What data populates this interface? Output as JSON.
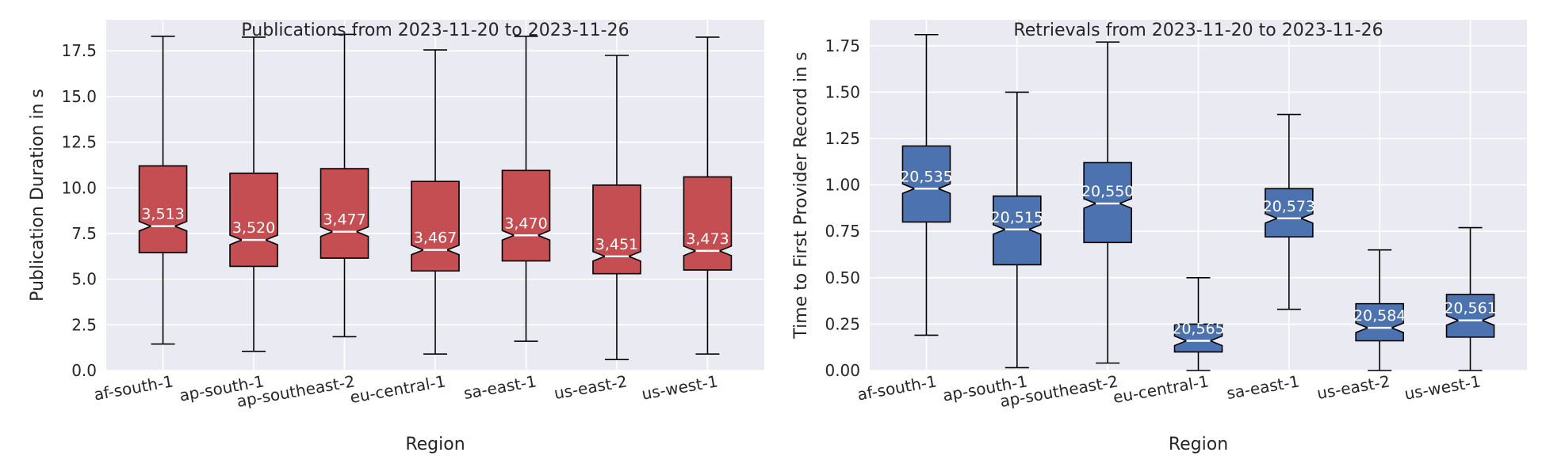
{
  "chart_data": [
    {
      "type": "box",
      "title": "Publications from 2023-11-20 to 2023-11-26",
      "xlabel": "Region",
      "ylabel": "Publication Duration in s",
      "ylim": [
        0,
        19.2
      ],
      "yticks": [
        0.0,
        2.5,
        5.0,
        7.5,
        10.0,
        12.5,
        15.0,
        17.5
      ],
      "ytick_labels": [
        "0.0",
        "2.5",
        "5.0",
        "7.5",
        "10.0",
        "12.5",
        "15.0",
        "17.5"
      ],
      "grid": true,
      "notched": true,
      "color": "#c44e52",
      "categories": [
        "af-south-1",
        "ap-south-1",
        "ap-southeast-2",
        "eu-central-1",
        "sa-east-1",
        "us-east-2",
        "us-west-1"
      ],
      "boxes": [
        {
          "whisker_low": 1.45,
          "q1": 6.45,
          "median": 7.9,
          "q3": 11.2,
          "whisker_high": 18.3,
          "count_label": "3,513"
        },
        {
          "whisker_low": 1.05,
          "q1": 5.7,
          "median": 7.15,
          "q3": 10.8,
          "whisker_high": 18.25,
          "count_label": "3,520"
        },
        {
          "whisker_low": 1.85,
          "q1": 6.15,
          "median": 7.6,
          "q3": 11.05,
          "whisker_high": 18.4,
          "count_label": "3,477"
        },
        {
          "whisker_low": 0.9,
          "q1": 5.45,
          "median": 6.6,
          "q3": 10.35,
          "whisker_high": 17.55,
          "count_label": "3,467"
        },
        {
          "whisker_low": 1.6,
          "q1": 6.0,
          "median": 7.4,
          "q3": 10.95,
          "whisker_high": 18.3,
          "count_label": "3,470"
        },
        {
          "whisker_low": 0.6,
          "q1": 5.3,
          "median": 6.25,
          "q3": 10.15,
          "whisker_high": 17.25,
          "count_label": "3,451"
        },
        {
          "whisker_low": 0.9,
          "q1": 5.5,
          "median": 6.55,
          "q3": 10.6,
          "whisker_high": 18.25,
          "count_label": "3,473"
        }
      ]
    },
    {
      "type": "box",
      "title": "Retrievals from 2023-11-20 to 2023-11-26",
      "xlabel": "Region",
      "ylabel": "Time to First Provider Record in s",
      "ylim": [
        0,
        1.89
      ],
      "yticks": [
        0.0,
        0.25,
        0.5,
        0.75,
        1.0,
        1.25,
        1.5,
        1.75
      ],
      "ytick_labels": [
        "0.00",
        "0.25",
        "0.50",
        "0.75",
        "1.00",
        "1.25",
        "1.50",
        "1.75"
      ],
      "grid": true,
      "notched": true,
      "color": "#4c72b0",
      "categories": [
        "af-south-1",
        "ap-south-1",
        "ap-southeast-2",
        "eu-central-1",
        "sa-east-1",
        "us-east-2",
        "us-west-1"
      ],
      "boxes": [
        {
          "whisker_low": 0.19,
          "q1": 0.8,
          "median": 0.98,
          "q3": 1.21,
          "whisker_high": 1.81,
          "count_label": "20,535"
        },
        {
          "whisker_low": 0.015,
          "q1": 0.57,
          "median": 0.76,
          "q3": 0.94,
          "whisker_high": 1.5,
          "count_label": "20,515"
        },
        {
          "whisker_low": 0.04,
          "q1": 0.69,
          "median": 0.9,
          "q3": 1.12,
          "whisker_high": 1.77,
          "count_label": "20,550"
        },
        {
          "whisker_low": 0.0,
          "q1": 0.1,
          "median": 0.16,
          "q3": 0.25,
          "whisker_high": 0.5,
          "count_label": "20,565"
        },
        {
          "whisker_low": 0.33,
          "q1": 0.72,
          "median": 0.82,
          "q3": 0.98,
          "whisker_high": 1.38,
          "count_label": "20,573"
        },
        {
          "whisker_low": 0.0,
          "q1": 0.16,
          "median": 0.23,
          "q3": 0.36,
          "whisker_high": 0.65,
          "count_label": "20,584"
        },
        {
          "whisker_low": 0.0,
          "q1": 0.18,
          "median": 0.27,
          "q3": 0.41,
          "whisker_high": 0.77,
          "count_label": "20,561"
        }
      ]
    }
  ]
}
